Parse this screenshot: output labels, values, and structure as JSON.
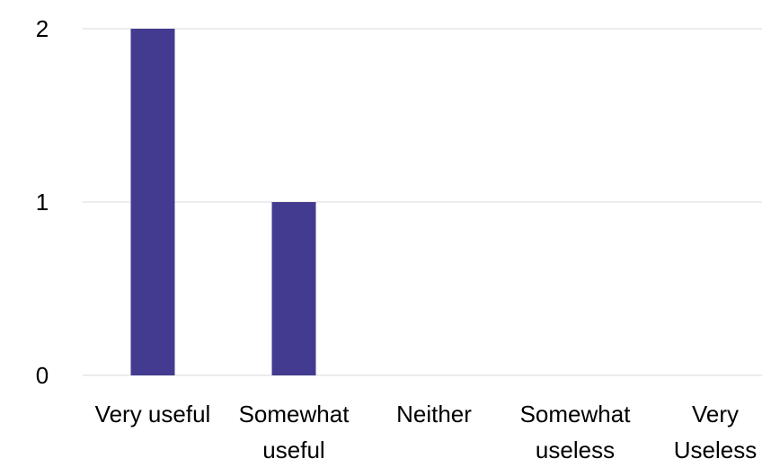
{
  "chart_data": {
    "type": "bar",
    "categories": [
      [
        "Very useful"
      ],
      [
        "Somewhat",
        "useful"
      ],
      [
        "Neither"
      ],
      [
        "Somewhat",
        "useless"
      ],
      [
        "Very",
        "Useless"
      ]
    ],
    "values": [
      2,
      1,
      0,
      0,
      0
    ],
    "ylim": [
      0,
      2
    ],
    "yticks": [
      "0",
      "1",
      "2"
    ],
    "grid": true,
    "legend": "none",
    "colors": {
      "bar": "#433b8f",
      "grid": "#e6e6e6"
    }
  }
}
